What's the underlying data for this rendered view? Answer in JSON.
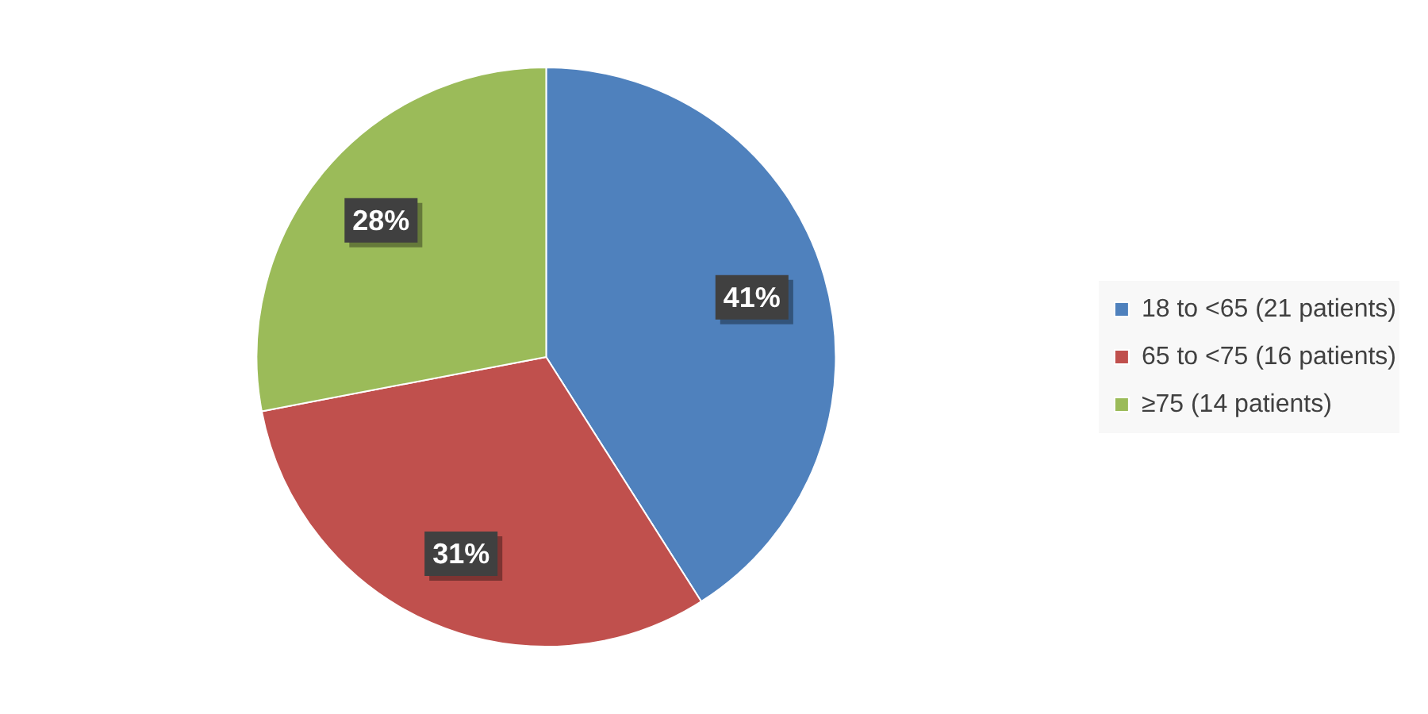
{
  "chart_data": {
    "type": "pie",
    "categories": [
      "18 to <65 (21 patients)",
      "65 to <75 (16 patients)",
      "≥75 (14 patients)"
    ],
    "values": [
      41,
      31,
      28
    ],
    "colors": [
      "#4f81bd",
      "#c0504d",
      "#9bbb59"
    ],
    "value_labels": [
      "41%",
      "31%",
      "28%"
    ],
    "legend": "right"
  }
}
